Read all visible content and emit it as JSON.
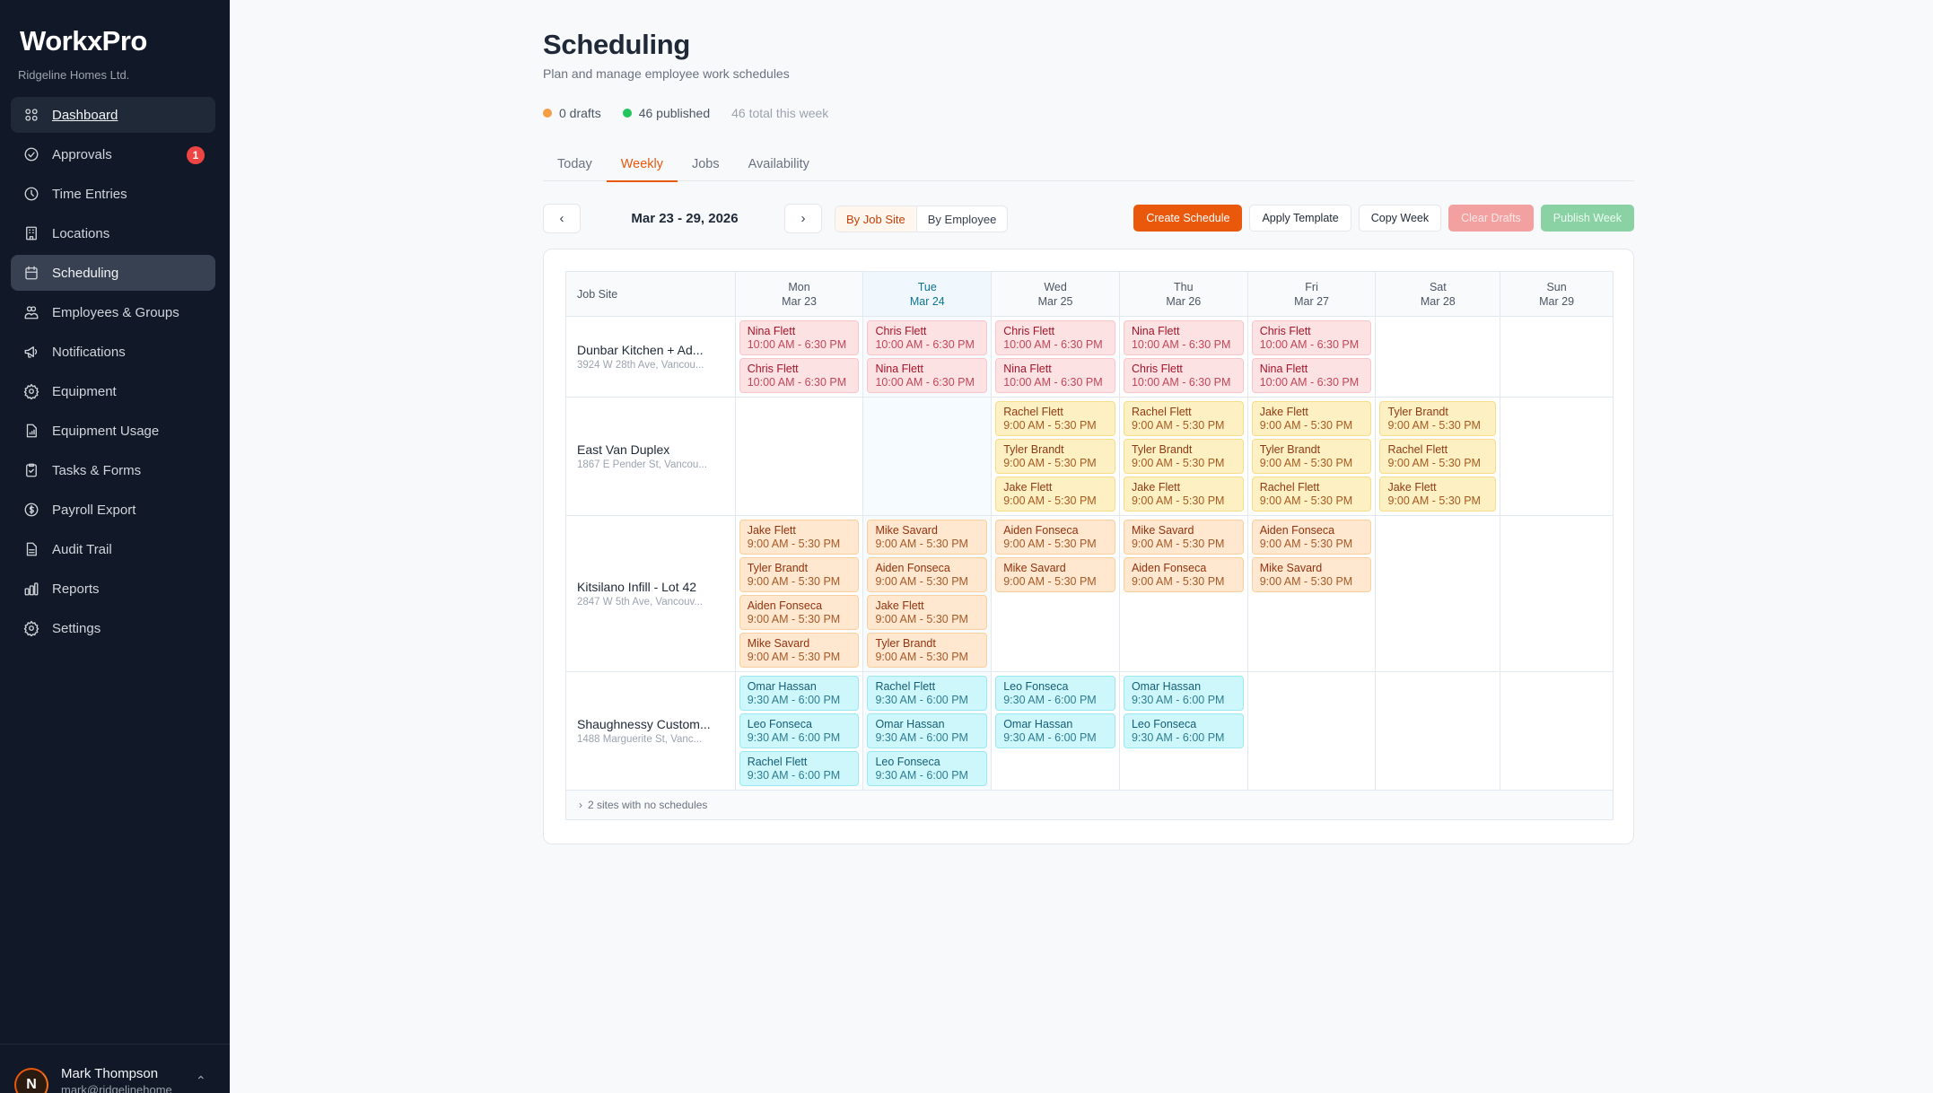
{
  "sidebar": {
    "brand": "WorkxPro",
    "org": "Ridgeline Homes Ltd.",
    "items": [
      {
        "label": "Dashboard",
        "icon": "grid-icon"
      },
      {
        "label": "Approvals",
        "icon": "check-circle-icon",
        "badge": "1"
      },
      {
        "label": "Time Entries",
        "icon": "clock-icon"
      },
      {
        "label": "Locations",
        "icon": "building-icon"
      },
      {
        "label": "Scheduling",
        "icon": "calendar-icon"
      },
      {
        "label": "Employees & Groups",
        "icon": "users-icon"
      },
      {
        "label": "Notifications",
        "icon": "megaphone-icon"
      },
      {
        "label": "Equipment",
        "icon": "gear-icon"
      },
      {
        "label": "Equipment Usage",
        "icon": "file-chart-icon"
      },
      {
        "label": "Tasks & Forms",
        "icon": "clipboard-check-icon"
      },
      {
        "label": "Payroll Export",
        "icon": "dollar-circle-icon"
      },
      {
        "label": "Audit Trail",
        "icon": "file-text-icon"
      },
      {
        "label": "Reports",
        "icon": "bar-chart-icon"
      },
      {
        "label": "Settings",
        "icon": "settings-icon"
      }
    ],
    "user": {
      "initial": "N",
      "name": "Mark Thompson",
      "email": "mark@ridgelinehome"
    }
  },
  "header": {
    "title": "Scheduling",
    "subtitle": "Plan and manage employee work schedules",
    "stats": {
      "drafts": "0 drafts",
      "published": "46 published",
      "total": "46 total this week",
      "drafts_color": "#f59e42",
      "published_color": "#22c55e"
    }
  },
  "tabs": [
    {
      "label": "Today"
    },
    {
      "label": "Weekly"
    },
    {
      "label": "Jobs"
    },
    {
      "label": "Availability"
    }
  ],
  "toolbar": {
    "prev": "‹",
    "next": "›",
    "date_range": "Mar 23 - 29, 2026",
    "view_by_job_site": "By Job Site",
    "view_by_employee": "By Employee",
    "create_schedule": "Create Schedule",
    "apply_template": "Apply Template",
    "copy_week": "Copy Week",
    "clear_drafts": "Clear Drafts",
    "publish_week": "Publish Week"
  },
  "schedule": {
    "site_header": "Job Site",
    "days": [
      {
        "dow": "Mon",
        "date": "Mar 23"
      },
      {
        "dow": "Tue",
        "date": "Mar 24"
      },
      {
        "dow": "Wed",
        "date": "Mar 25"
      },
      {
        "dow": "Thu",
        "date": "Mar 26"
      },
      {
        "dow": "Fri",
        "date": "Mar 27"
      },
      {
        "dow": "Sat",
        "date": "Mar 28"
      },
      {
        "dow": "Sun",
        "date": "Mar 29"
      }
    ],
    "sites": [
      {
        "name": "Dunbar Kitchen + Ad...",
        "address": "3924 W 28th Ave, Vancou...",
        "color": "red",
        "shifts": [
          [
            {
              "name": "Nina Flett",
              "time": "10:00 AM - 6:30 PM"
            },
            {
              "name": "Chris Flett",
              "time": "10:00 AM - 6:30 PM"
            }
          ],
          [
            {
              "name": "Chris Flett",
              "time": "10:00 AM - 6:30 PM"
            },
            {
              "name": "Nina Flett",
              "time": "10:00 AM - 6:30 PM"
            }
          ],
          [
            {
              "name": "Chris Flett",
              "time": "10:00 AM - 6:30 PM"
            },
            {
              "name": "Nina Flett",
              "time": "10:00 AM - 6:30 PM"
            }
          ],
          [
            {
              "name": "Nina Flett",
              "time": "10:00 AM - 6:30 PM"
            },
            {
              "name": "Chris Flett",
              "time": "10:00 AM - 6:30 PM"
            }
          ],
          [
            {
              "name": "Chris Flett",
              "time": "10:00 AM - 6:30 PM"
            },
            {
              "name": "Nina Flett",
              "time": "10:00 AM - 6:30 PM"
            }
          ],
          [],
          []
        ]
      },
      {
        "name": "East Van Duplex",
        "address": "1867 E Pender St, Vancou...",
        "color": "yellow",
        "shifts": [
          [],
          [],
          [
            {
              "name": "Rachel Flett",
              "time": "9:00 AM - 5:30 PM"
            },
            {
              "name": "Tyler Brandt",
              "time": "9:00 AM - 5:30 PM"
            },
            {
              "name": "Jake Flett",
              "time": "9:00 AM - 5:30 PM"
            }
          ],
          [
            {
              "name": "Rachel Flett",
              "time": "9:00 AM - 5:30 PM"
            },
            {
              "name": "Tyler Brandt",
              "time": "9:00 AM - 5:30 PM"
            },
            {
              "name": "Jake Flett",
              "time": "9:00 AM - 5:30 PM"
            }
          ],
          [
            {
              "name": "Jake Flett",
              "time": "9:00 AM - 5:30 PM"
            },
            {
              "name": "Tyler Brandt",
              "time": "9:00 AM - 5:30 PM"
            },
            {
              "name": "Rachel Flett",
              "time": "9:00 AM - 5:30 PM"
            }
          ],
          [
            {
              "name": "Tyler Brandt",
              "time": "9:00 AM - 5:30 PM"
            },
            {
              "name": "Rachel Flett",
              "time": "9:00 AM - 5:30 PM"
            },
            {
              "name": "Jake Flett",
              "time": "9:00 AM - 5:30 PM"
            }
          ],
          []
        ]
      },
      {
        "name": "Kitsilano Infill - Lot 42",
        "address": "2847 W 5th Ave, Vancouv...",
        "color": "orange",
        "shifts": [
          [
            {
              "name": "Jake Flett",
              "time": "9:00 AM - 5:30 PM"
            },
            {
              "name": "Tyler Brandt",
              "time": "9:00 AM - 5:30 PM"
            },
            {
              "name": "Aiden Fonseca",
              "time": "9:00 AM - 5:30 PM"
            },
            {
              "name": "Mike Savard",
              "time": "9:00 AM - 5:30 PM"
            }
          ],
          [
            {
              "name": "Mike Savard",
              "time": "9:00 AM - 5:30 PM"
            },
            {
              "name": "Aiden Fonseca",
              "time": "9:00 AM - 5:30 PM"
            },
            {
              "name": "Jake Flett",
              "time": "9:00 AM - 5:30 PM"
            },
            {
              "name": "Tyler Brandt",
              "time": "9:00 AM - 5:30 PM"
            }
          ],
          [
            {
              "name": "Aiden Fonseca",
              "time": "9:00 AM - 5:30 PM"
            },
            {
              "name": "Mike Savard",
              "time": "9:00 AM - 5:30 PM"
            }
          ],
          [
            {
              "name": "Mike Savard",
              "time": "9:00 AM - 5:30 PM"
            },
            {
              "name": "Aiden Fonseca",
              "time": "9:00 AM - 5:30 PM"
            }
          ],
          [
            {
              "name": "Aiden Fonseca",
              "time": "9:00 AM - 5:30 PM"
            },
            {
              "name": "Mike Savard",
              "time": "9:00 AM - 5:30 PM"
            }
          ],
          [],
          []
        ]
      },
      {
        "name": "Shaughnessy Custom...",
        "address": "1488 Marguerite St, Vanc...",
        "color": "cyan",
        "shifts": [
          [
            {
              "name": "Omar Hassan",
              "time": "9:30 AM - 6:00 PM"
            },
            {
              "name": "Leo Fonseca",
              "time": "9:30 AM - 6:00 PM"
            },
            {
              "name": "Rachel Flett",
              "time": "9:30 AM - 6:00 PM"
            }
          ],
          [
            {
              "name": "Rachel Flett",
              "time": "9:30 AM - 6:00 PM"
            },
            {
              "name": "Omar Hassan",
              "time": "9:30 AM - 6:00 PM"
            },
            {
              "name": "Leo Fonseca",
              "time": "9:30 AM - 6:00 PM"
            }
          ],
          [
            {
              "name": "Leo Fonseca",
              "time": "9:30 AM - 6:00 PM"
            },
            {
              "name": "Omar Hassan",
              "time": "9:30 AM - 6:00 PM"
            }
          ],
          [
            {
              "name": "Omar Hassan",
              "time": "9:30 AM - 6:00 PM"
            },
            {
              "name": "Leo Fonseca",
              "time": "9:30 AM - 6:00 PM"
            }
          ],
          [],
          [],
          []
        ]
      }
    ],
    "footer": "2 sites with no schedules"
  },
  "colors": {
    "accent": "#ea580c",
    "sidebar_bg": "#111827",
    "page_bg": "#f8f9fb",
    "today_col": "#0e7490"
  }
}
